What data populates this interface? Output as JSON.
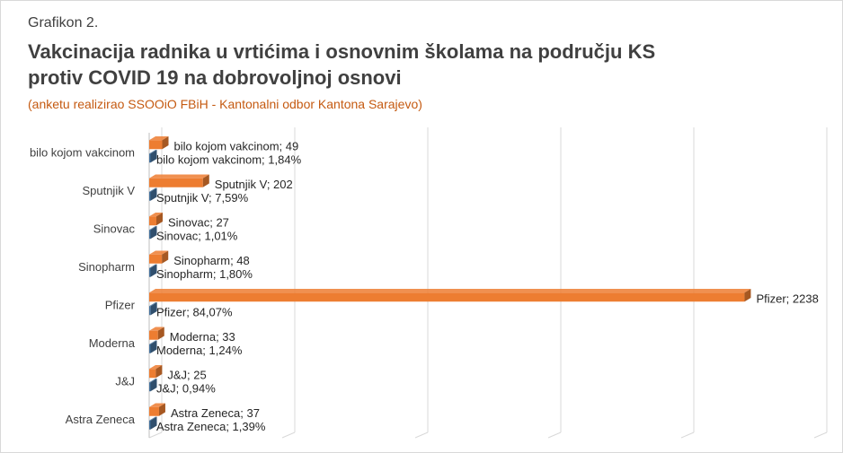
{
  "header": {
    "figure_label": "Grafikon 2.",
    "title_line1": "Vakcinacija radnika u vrtićima i osnovnim školama na području KS",
    "title_line2": "protiv COVID 19 na dobrovoljnoj osnovi",
    "subtitle": "(anketu realizirao SSOOiO FBiH - Kantonalni odbor Kantona Sarajevo)"
  },
  "chart_data": {
    "type": "bar",
    "orientation": "horizontal",
    "style": "3d",
    "categories": [
      "bilo kojom vakcinom",
      "Sputnjik V",
      "Sinovac",
      "Sinopharm",
      "Pfizer",
      "Moderna",
      "J&J",
      "Astra Zeneca"
    ],
    "series": [
      {
        "color": "#ed7d31",
        "values": [
          49,
          202,
          27,
          48,
          2238,
          33,
          25,
          37
        ],
        "labels": [
          "bilo kojom vakcinom; 49",
          "Sputnjik V; 202",
          "Sinovac; 27",
          "Sinopharm; 48",
          "Pfizer; 2238",
          "Moderna; 33",
          "J&J; 25",
          "Astra Zeneca; 37"
        ]
      },
      {
        "color": "#44719c",
        "values": [
          1.84,
          7.59,
          1.01,
          1.8,
          84.07,
          1.24,
          0.94,
          1.39
        ],
        "labels": [
          "bilo kojom vakcinom; 1,84%",
          "Sputnjik V; 7,59%",
          "Sinovac; 1,01%",
          "Sinopharm; 1,80%",
          "Pfizer; 84,07%",
          "Moderna; 1,24%",
          "J&J; 0,94%",
          "Astra Zeneca; 1,39%"
        ]
      }
    ],
    "xlim": [
      0,
      2500
    ],
    "grid": true,
    "legend": "none"
  }
}
